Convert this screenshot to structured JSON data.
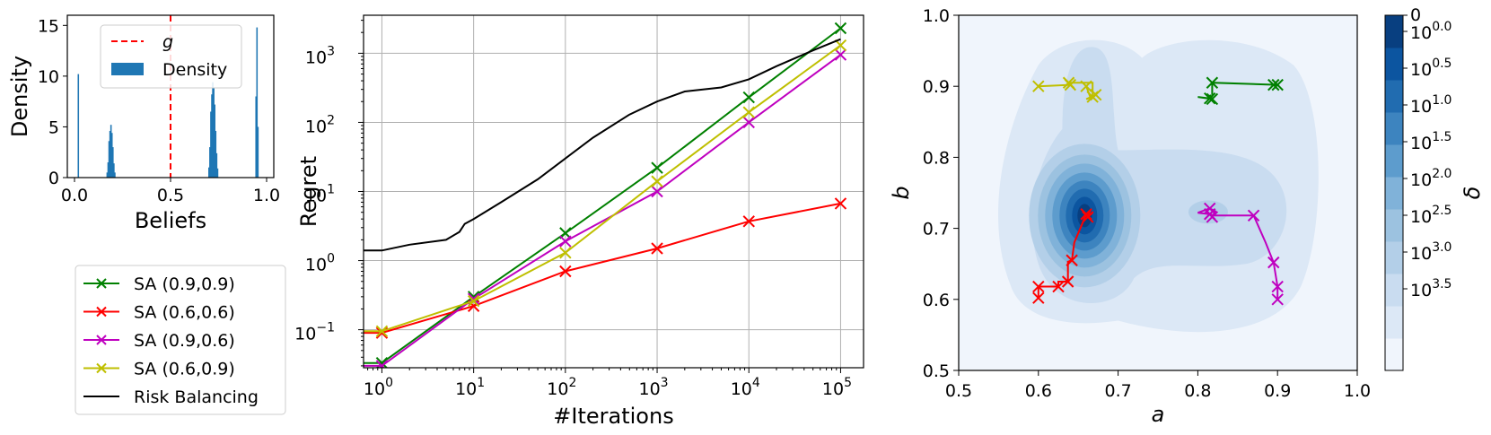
{
  "chart_data": [
    {
      "type": "histogram",
      "xlabel": "Beliefs",
      "ylabel": "Density",
      "xlim": [
        0.0,
        1.0
      ],
      "ylim": [
        0,
        16
      ],
      "xticks": [
        "0.0",
        "0.5",
        "1.0"
      ],
      "yticks": [
        "0",
        "5",
        "10",
        "15"
      ],
      "threshold": {
        "name": "g",
        "value": 0.5,
        "color": "#ff0000"
      },
      "series_name": "Density",
      "bar_color": "#1f77b4",
      "bins": [
        {
          "x": 0.02,
          "y": 10.2
        },
        {
          "x": 0.175,
          "y": 1.5
        },
        {
          "x": 0.18,
          "y": 3.6
        },
        {
          "x": 0.185,
          "y": 4.6
        },
        {
          "x": 0.19,
          "y": 5.2
        },
        {
          "x": 0.195,
          "y": 4.4
        },
        {
          "x": 0.2,
          "y": 3.0
        },
        {
          "x": 0.205,
          "y": 1.4
        },
        {
          "x": 0.21,
          "y": 0.5
        },
        {
          "x": 0.17,
          "y": 0.5
        },
        {
          "x": 0.7,
          "y": 1.0
        },
        {
          "x": 0.705,
          "y": 3.0
        },
        {
          "x": 0.71,
          "y": 6.5
        },
        {
          "x": 0.715,
          "y": 8.2
        },
        {
          "x": 0.72,
          "y": 9.4
        },
        {
          "x": 0.725,
          "y": 8.8
        },
        {
          "x": 0.73,
          "y": 7.2
        },
        {
          "x": 0.735,
          "y": 4.6
        },
        {
          "x": 0.74,
          "y": 2.4
        },
        {
          "x": 0.745,
          "y": 0.9
        },
        {
          "x": 0.945,
          "y": 8.0
        },
        {
          "x": 0.95,
          "y": 14.8
        },
        {
          "x": 0.955,
          "y": 5.0
        }
      ]
    },
    {
      "type": "line",
      "xlabel": "#Iterations",
      "ylabel": "Regret",
      "xscale": "log",
      "yscale": "log",
      "xlim_log10": [
        -0.2,
        5.25
      ],
      "ylim_log10": [
        -1.55,
        3.55
      ],
      "xticks": [
        {
          "b": "10",
          "e": "0"
        },
        {
          "b": "10",
          "e": "1"
        },
        {
          "b": "10",
          "e": "2"
        },
        {
          "b": "10",
          "e": "3"
        },
        {
          "b": "10",
          "e": "4"
        },
        {
          "b": "10",
          "e": "5"
        }
      ],
      "yticks": [
        {
          "b": "10",
          "e": "−1"
        },
        {
          "b": "10",
          "e": "0"
        },
        {
          "b": "10",
          "e": "1"
        },
        {
          "b": "10",
          "e": "2"
        },
        {
          "b": "10",
          "e": "3"
        }
      ],
      "grid": true,
      "legend": {
        "placement": "below-left"
      },
      "series": [
        {
          "name": "SA (0.9,0.9)",
          "color": "#008000",
          "marker": "x",
          "x": [
            0.5,
            1,
            10,
            100,
            1000,
            10000,
            100000
          ],
          "y": [
            0.033,
            0.033,
            0.3,
            2.5,
            22,
            230,
            2300
          ]
        },
        {
          "name": "SA (0.6,0.6)",
          "color": "#ff0000",
          "marker": "x",
          "x": [
            0.5,
            1,
            10,
            100,
            1000,
            10000,
            100000
          ],
          "y": [
            0.09,
            0.09,
            0.22,
            0.7,
            1.5,
            3.7,
            6.7
          ]
        },
        {
          "name": "SA (0.9,0.6)",
          "color": "#bf00bf",
          "marker": "x",
          "x": [
            0.5,
            1,
            10,
            100,
            1000,
            10000,
            100000
          ],
          "y": [
            0.03,
            0.03,
            0.28,
            1.9,
            10,
            100,
            950
          ]
        },
        {
          "name": "SA (0.6,0.9)",
          "color": "#bfbf00",
          "marker": "x",
          "x": [
            0.5,
            1,
            10,
            100,
            1000,
            10000,
            100000
          ],
          "y": [
            0.095,
            0.095,
            0.26,
            1.3,
            14,
            140,
            1300
          ]
        },
        {
          "name": "Risk Balancing",
          "color": "#000000",
          "marker": "none",
          "x": [
            0.5,
            1,
            2,
            5,
            7,
            8,
            10,
            20,
            50,
            100,
            200,
            500,
            1000,
            2000,
            5000,
            10000,
            20000,
            50000,
            100000
          ],
          "y": [
            1.4,
            1.4,
            1.7,
            2.0,
            2.6,
            3.4,
            4.0,
            7,
            15,
            30,
            60,
            130,
            200,
            280,
            320,
            420,
            650,
            1100,
            1600
          ]
        }
      ]
    },
    {
      "type": "contour",
      "xlabel": "a",
      "ylabel": "b",
      "xlim": [
        0.5,
        1.0
      ],
      "ylim": [
        0.5,
        1.0
      ],
      "xticks": [
        "0.5",
        "0.6",
        "0.7",
        "0.8",
        "0.9",
        "1.0"
      ],
      "yticks": [
        "0.5",
        "0.6",
        "0.7",
        "0.8",
        "0.9",
        "1.0"
      ],
      "colorbar": {
        "label": "δ",
        "top_label": "0",
        "ticks": [
          {
            "b": "10",
            "e": "0.0"
          },
          {
            "b": "10",
            "e": "0.5"
          },
          {
            "b": "10",
            "e": "1.0"
          },
          {
            "b": "10",
            "e": "1.5"
          },
          {
            "b": "10",
            "e": "2.0"
          },
          {
            "b": "10",
            "e": "2.5"
          },
          {
            "b": "10",
            "e": "3.0"
          },
          {
            "b": "10",
            "e": "3.5"
          }
        ],
        "colors": [
          "#f0f5fc",
          "#dce8f6",
          "#c9dcf0",
          "#b3cfe8",
          "#9cc2e0",
          "#80b2d9",
          "#5d9ccd",
          "#3d84bf",
          "#216cb0",
          "#0c55a0",
          "#083f80"
        ]
      },
      "paths": [
        {
          "name": "SA (0.9,0.9)",
          "color": "#008000",
          "points": [
            [
              0.895,
              0.902
            ],
            [
              0.9,
              0.902
            ],
            [
              0.818,
              0.905
            ],
            [
              0.818,
              0.886
            ],
            [
              0.815,
              0.883
            ],
            [
              0.8,
              0.885
            ],
            [
              0.818,
              0.882
            ],
            [
              0.815,
              0.888
            ]
          ]
        },
        {
          "name": "SA (0.6,0.6)",
          "color": "#ff0000",
          "points": [
            [
              0.6,
              0.602
            ],
            [
              0.6,
              0.618
            ],
            [
              0.625,
              0.618
            ],
            [
              0.625,
              0.625
            ],
            [
              0.637,
              0.625
            ],
            [
              0.637,
              0.653
            ],
            [
              0.642,
              0.655
            ],
            [
              0.645,
              0.68
            ],
            [
              0.66,
              0.72
            ],
            [
              0.665,
              0.725
            ],
            [
              0.662,
              0.716
            ],
            [
              0.668,
              0.722
            ]
          ]
        },
        {
          "name": "SA (0.9,0.6)",
          "color": "#bf00bf",
          "points": [
            [
              0.9,
              0.6
            ],
            [
              0.9,
              0.618
            ],
            [
              0.895,
              0.652
            ],
            [
              0.885,
              0.68
            ],
            [
              0.87,
              0.718
            ],
            [
              0.82,
              0.718
            ],
            [
              0.815,
              0.72
            ],
            [
              0.8,
              0.722
            ],
            [
              0.815,
              0.728
            ],
            [
              0.822,
              0.724
            ],
            [
              0.818,
              0.716
            ]
          ]
        },
        {
          "name": "SA (0.6,0.9)",
          "color": "#bfbf00",
          "points": [
            [
              0.6,
              0.9
            ],
            [
              0.64,
              0.902
            ],
            [
              0.638,
              0.905
            ],
            [
              0.668,
              0.905
            ],
            [
              0.668,
              0.885
            ],
            [
              0.66,
              0.882
            ],
            [
              0.672,
              0.888
            ],
            [
              0.665,
              0.885
            ],
            [
              0.66,
              0.9
            ]
          ]
        }
      ]
    }
  ]
}
